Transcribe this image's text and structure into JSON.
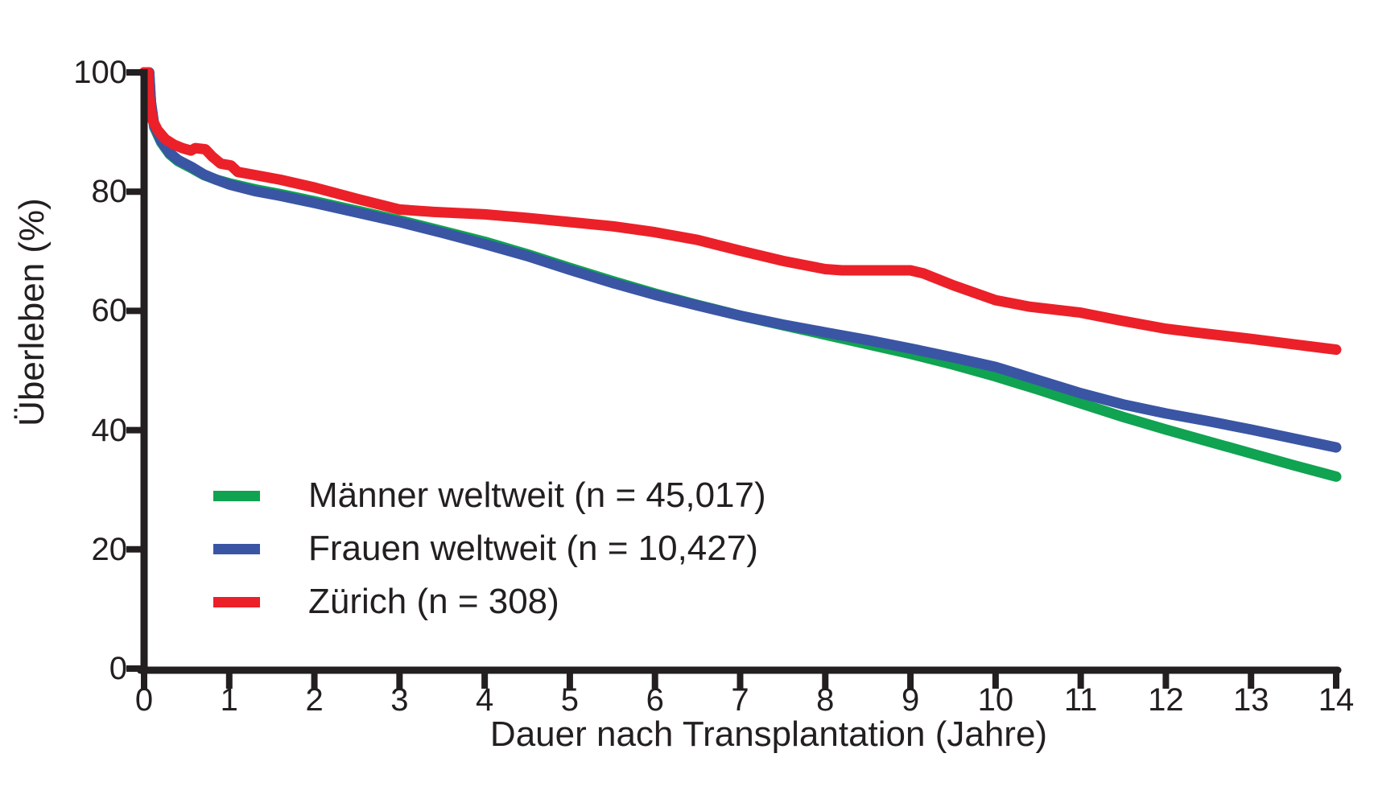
{
  "figure": {
    "background": "#ffffff",
    "axis_color": "#231f20",
    "text_color": "#231f20"
  },
  "chart_data": {
    "type": "line",
    "title": "",
    "xlabel": "Dauer nach Transplantation (Jahre)",
    "ylabel": "Überleben (%)",
    "xlim": [
      0,
      14
    ],
    "ylim": [
      0,
      100
    ],
    "x_ticks": [
      0,
      1,
      2,
      3,
      4,
      5,
      6,
      7,
      8,
      9,
      10,
      11,
      12,
      13,
      14
    ],
    "y_ticks": [
      0,
      20,
      40,
      60,
      80,
      100
    ],
    "grid": false,
    "legend_position": "inside-lower-left",
    "series": [
      {
        "name": "maenner-weltweit",
        "label": "Männer weltweit (n = 45,017)",
        "color": "#10a351",
        "points": [
          [
            0.0,
            100
          ],
          [
            0.06,
            100
          ],
          [
            0.08,
            95
          ],
          [
            0.12,
            90.8
          ],
          [
            0.2,
            88.3
          ],
          [
            0.3,
            86.3
          ],
          [
            0.4,
            85.1
          ],
          [
            0.55,
            84.0
          ],
          [
            0.7,
            82.8
          ],
          [
            0.85,
            82.0
          ],
          [
            1.0,
            81.4
          ],
          [
            1.3,
            80.4
          ],
          [
            1.6,
            79.6
          ],
          [
            2.0,
            78.4
          ],
          [
            2.5,
            76.8
          ],
          [
            3.0,
            75.2
          ],
          [
            3.5,
            73.4
          ],
          [
            4.0,
            71.6
          ],
          [
            4.5,
            69.5
          ],
          [
            5.0,
            67.2
          ],
          [
            5.5,
            65.0
          ],
          [
            6.0,
            62.9
          ],
          [
            6.5,
            61.0
          ],
          [
            7.0,
            59.2
          ],
          [
            7.5,
            57.6
          ],
          [
            8.0,
            56.0
          ],
          [
            8.5,
            54.4
          ],
          [
            9.0,
            52.8
          ],
          [
            9.5,
            51.0
          ],
          [
            10.0,
            49.0
          ],
          [
            10.5,
            46.8
          ],
          [
            11.0,
            44.5
          ],
          [
            11.5,
            42.2
          ],
          [
            12.0,
            40.1
          ],
          [
            12.5,
            38.1
          ],
          [
            13.0,
            36.1
          ],
          [
            13.5,
            34.1
          ],
          [
            14.0,
            32.2
          ]
        ]
      },
      {
        "name": "frauen-weltweit",
        "label": "Frauen weltweit (n = 10,427)",
        "color": "#3a55a4",
        "points": [
          [
            0.0,
            100
          ],
          [
            0.06,
            100
          ],
          [
            0.08,
            95
          ],
          [
            0.12,
            91.0
          ],
          [
            0.2,
            88.5
          ],
          [
            0.3,
            86.5
          ],
          [
            0.4,
            85.3
          ],
          [
            0.55,
            84.2
          ],
          [
            0.7,
            82.9
          ],
          [
            0.85,
            82.0
          ],
          [
            1.0,
            81.2
          ],
          [
            1.3,
            80.1
          ],
          [
            1.6,
            79.3
          ],
          [
            2.0,
            78.1
          ],
          [
            2.5,
            76.5
          ],
          [
            3.0,
            74.9
          ],
          [
            3.5,
            73.1
          ],
          [
            4.0,
            71.2
          ],
          [
            4.5,
            69.2
          ],
          [
            5.0,
            66.9
          ],
          [
            5.5,
            64.7
          ],
          [
            6.0,
            62.7
          ],
          [
            6.5,
            60.9
          ],
          [
            7.0,
            59.2
          ],
          [
            7.5,
            57.7
          ],
          [
            8.0,
            56.4
          ],
          [
            8.5,
            55.1
          ],
          [
            9.0,
            53.7
          ],
          [
            9.5,
            52.2
          ],
          [
            10.0,
            50.6
          ],
          [
            10.5,
            48.4
          ],
          [
            11.0,
            46.2
          ],
          [
            11.5,
            44.3
          ],
          [
            12.0,
            42.8
          ],
          [
            12.5,
            41.5
          ],
          [
            13.0,
            40.1
          ],
          [
            13.5,
            38.6
          ],
          [
            14.0,
            37.1
          ]
        ]
      },
      {
        "name": "zuerich",
        "label": "Zürich (n = 308)",
        "color": "#ec2028",
        "points": [
          [
            0.0,
            100
          ],
          [
            0.05,
            100
          ],
          [
            0.06,
            96
          ],
          [
            0.1,
            92.0
          ],
          [
            0.16,
            90.3
          ],
          [
            0.25,
            88.8
          ],
          [
            0.35,
            87.9
          ],
          [
            0.45,
            87.3
          ],
          [
            0.55,
            86.9
          ],
          [
            0.6,
            87.3
          ],
          [
            0.72,
            87.1
          ],
          [
            0.8,
            85.9
          ],
          [
            0.9,
            84.7
          ],
          [
            1.02,
            84.4
          ],
          [
            1.1,
            83.3
          ],
          [
            1.3,
            82.8
          ],
          [
            1.6,
            82.0
          ],
          [
            2.0,
            80.7
          ],
          [
            2.5,
            78.8
          ],
          [
            3.0,
            77.0
          ],
          [
            3.4,
            76.6
          ],
          [
            4.0,
            76.2
          ],
          [
            4.5,
            75.6
          ],
          [
            5.0,
            74.9
          ],
          [
            5.5,
            74.2
          ],
          [
            6.0,
            73.2
          ],
          [
            6.5,
            71.9
          ],
          [
            7.0,
            70.1
          ],
          [
            7.5,
            68.4
          ],
          [
            8.0,
            67.0
          ],
          [
            8.2,
            66.8
          ],
          [
            9.0,
            66.8
          ],
          [
            9.15,
            66.3
          ],
          [
            9.5,
            64.3
          ],
          [
            10.0,
            61.8
          ],
          [
            10.4,
            60.7
          ],
          [
            11.0,
            59.7
          ],
          [
            11.5,
            58.3
          ],
          [
            12.0,
            57.0
          ],
          [
            12.4,
            56.3
          ],
          [
            13.0,
            55.3
          ],
          [
            13.5,
            54.4
          ],
          [
            14.0,
            53.5
          ]
        ]
      }
    ]
  }
}
